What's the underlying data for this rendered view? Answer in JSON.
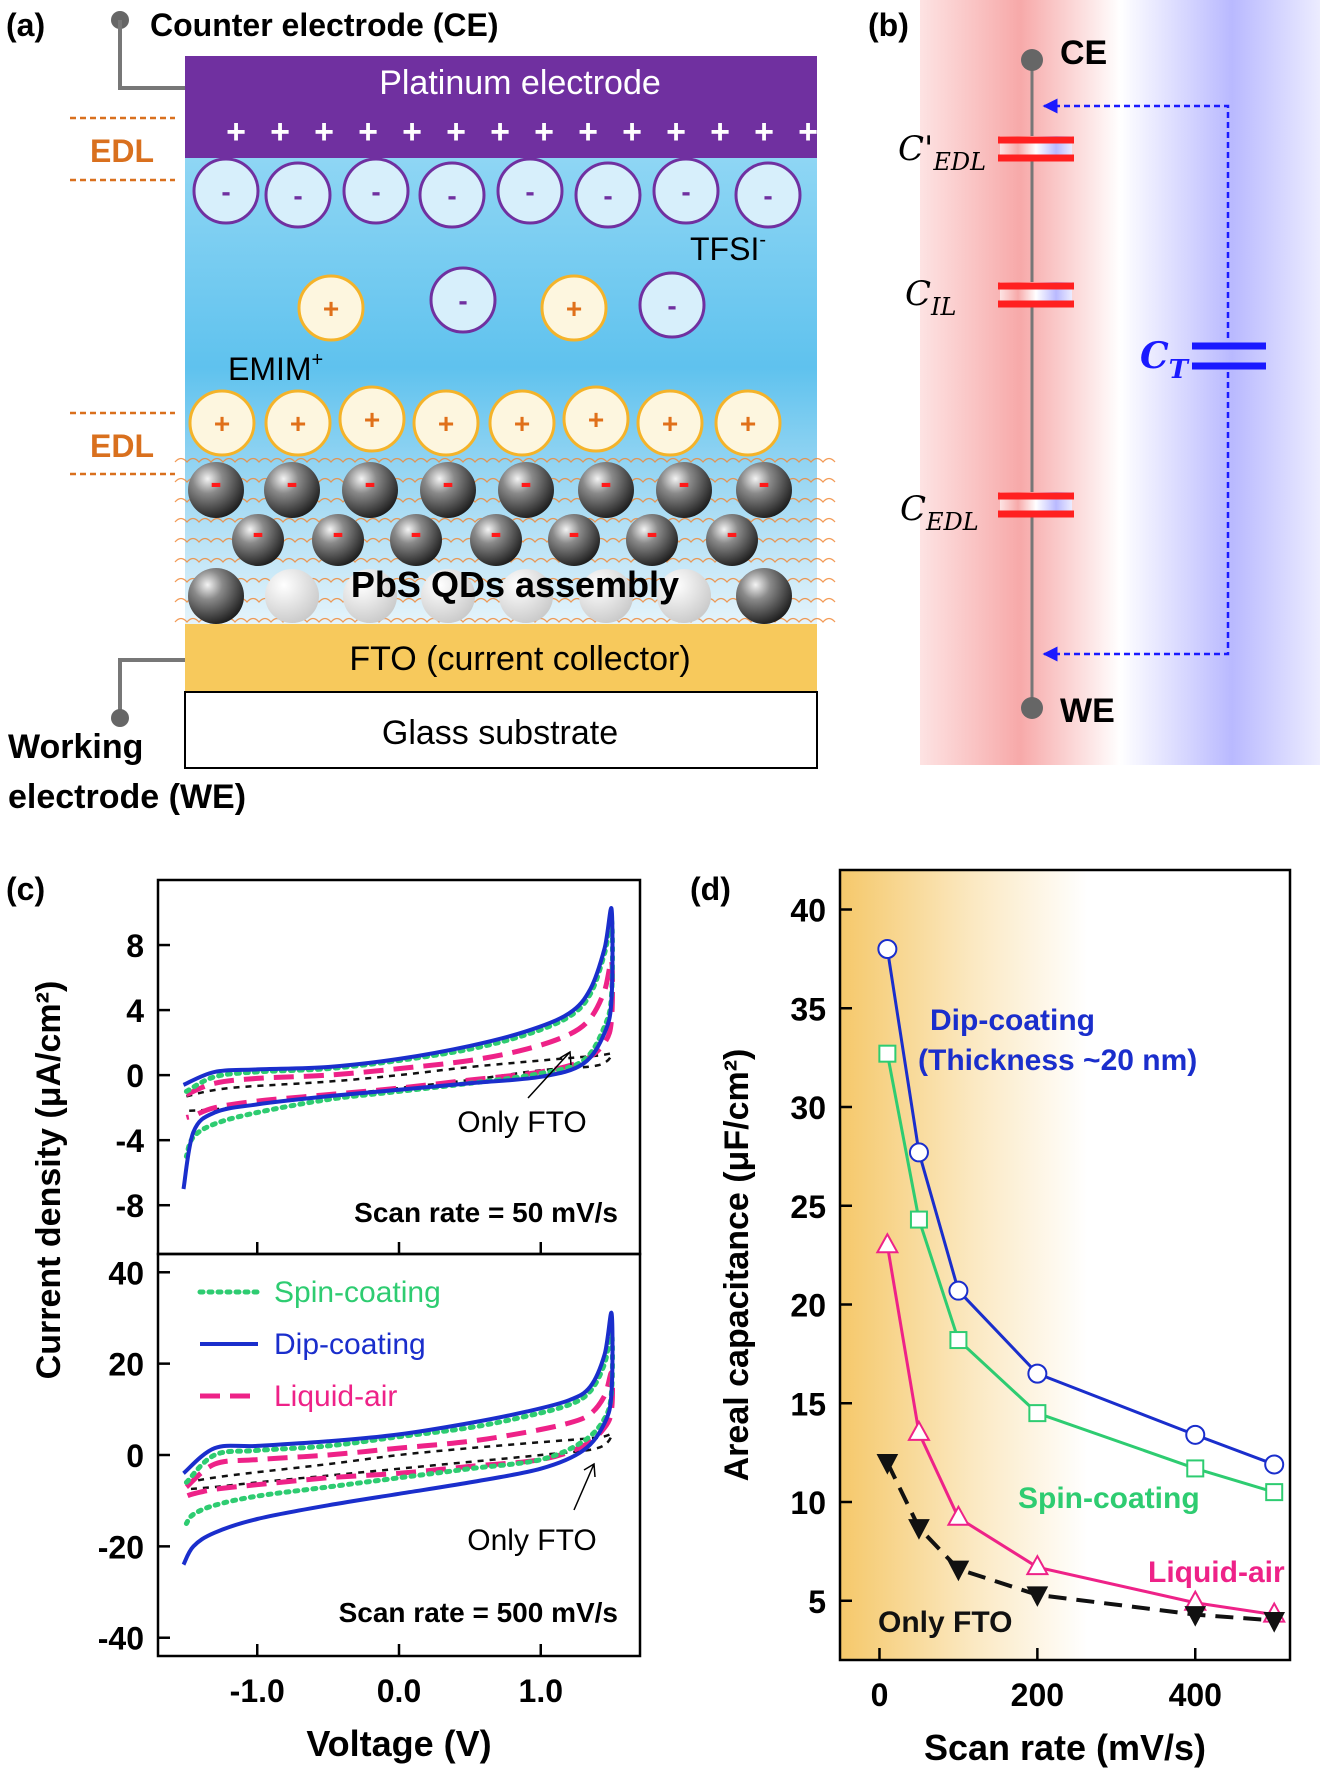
{
  "panel_labels": {
    "a": "(a)",
    "b": "(b)",
    "c": "(c)",
    "d": "(d)"
  },
  "schematic": {
    "counter_electrode": "Counter electrode (CE)",
    "working_electrode_line1": "Working",
    "working_electrode_line2": "electrode (WE)",
    "platinum": "Platinum electrode",
    "edl": "EDL",
    "tfsi": "TFSI",
    "tfsi_sup": "-",
    "emim": "EMIM",
    "emim_sup": "+",
    "pbs": "PbS QDs assembly",
    "fto": "FTO (current collector)",
    "glass": "Glass substrate",
    "plus_sign": "+",
    "minus_sign": "-",
    "colors": {
      "platinum": "#7030a0",
      "fto": "#f7c95c",
      "cation": "#f4b32a",
      "anion": "#7030a0",
      "edl": "#d9701e"
    }
  },
  "circuit": {
    "ce": "CE",
    "we": "WE",
    "c_edl_prime_main": "C'",
    "c_edl_prime_sub": "EDL",
    "c_il_main": "C",
    "c_il_sub": "IL",
    "c_edl_main": "C",
    "c_edl_sub": "EDL",
    "c_t_main": "C",
    "c_t_sub": "T",
    "colors": {
      "series_cap": "#ff2020",
      "parallel_cap": "#1a1aff"
    }
  },
  "chart_data": [
    {
      "id": "c_top",
      "type": "line",
      "annotation": "Scan rate = 50 mV/s",
      "arrow_label": "Only FTO",
      "ylim": [
        -11,
        12
      ],
      "xlim": [
        -1.7,
        1.7
      ],
      "yticks": [
        "8",
        "4",
        "0",
        "-4",
        "-8"
      ],
      "ytick_values": [
        8,
        4,
        0,
        -4,
        -8
      ],
      "series": [
        {
          "name": "Spin-coating",
          "color": "#2ecc71",
          "style": "dotted",
          "loop": [
            [
              -1.5,
              -1.0
            ],
            [
              -1.3,
              -0.1
            ],
            [
              -1.0,
              0.2
            ],
            [
              -0.5,
              0.4
            ],
            [
              0.0,
              0.9
            ],
            [
              0.5,
              1.6
            ],
            [
              0.9,
              2.5
            ],
            [
              1.2,
              3.6
            ],
            [
              1.35,
              5.0
            ],
            [
              1.45,
              7.5
            ],
            [
              1.5,
              9.5
            ],
            [
              1.5,
              5.0
            ],
            [
              1.45,
              3.0
            ],
            [
              1.3,
              0.9
            ],
            [
              1.0,
              0.1
            ],
            [
              0.5,
              -0.5
            ],
            [
              0.0,
              -1.0
            ],
            [
              -0.5,
              -1.5
            ],
            [
              -1.0,
              -2.3
            ],
            [
              -1.3,
              -3.0
            ],
            [
              -1.45,
              -3.8
            ],
            [
              -1.5,
              -5.0
            ]
          ]
        },
        {
          "name": "Dip-coating",
          "color": "#1a2ecc",
          "style": "solid",
          "loop": [
            [
              -1.52,
              -0.6
            ],
            [
              -1.3,
              0.2
            ],
            [
              -1.0,
              0.35
            ],
            [
              -0.5,
              0.5
            ],
            [
              0.0,
              1.0
            ],
            [
              0.5,
              1.8
            ],
            [
              0.9,
              2.7
            ],
            [
              1.2,
              3.8
            ],
            [
              1.35,
              5.3
            ],
            [
              1.45,
              7.8
            ],
            [
              1.5,
              10.2
            ],
            [
              1.5,
              4.8
            ],
            [
              1.45,
              2.6
            ],
            [
              1.3,
              0.7
            ],
            [
              1.0,
              -0.1
            ],
            [
              0.5,
              -0.5
            ],
            [
              0.0,
              -0.9
            ],
            [
              -0.5,
              -1.3
            ],
            [
              -1.0,
              -1.8
            ],
            [
              -1.3,
              -2.3
            ],
            [
              -1.45,
              -3.5
            ],
            [
              -1.52,
              -7.0
            ]
          ]
        },
        {
          "name": "Liquid-air",
          "color": "#ee2288",
          "style": "dashed",
          "loop": [
            [
              -1.5,
              -1.2
            ],
            [
              -1.3,
              -0.5
            ],
            [
              -1.0,
              -0.2
            ],
            [
              -0.5,
              0.0
            ],
            [
              0.0,
              0.4
            ],
            [
              0.5,
              0.9
            ],
            [
              0.9,
              1.6
            ],
            [
              1.2,
              2.5
            ],
            [
              1.35,
              3.5
            ],
            [
              1.45,
              5.2
            ],
            [
              1.5,
              7.0
            ],
            [
              1.5,
              3.5
            ],
            [
              1.45,
              2.0
            ],
            [
              1.3,
              0.9
            ],
            [
              1.0,
              0.2
            ],
            [
              0.5,
              -0.3
            ],
            [
              0.0,
              -0.8
            ],
            [
              -0.5,
              -1.2
            ],
            [
              -1.0,
              -1.6
            ],
            [
              -1.3,
              -2.0
            ],
            [
              -1.45,
              -2.5
            ],
            [
              -1.5,
              -2.6
            ]
          ]
        },
        {
          "name": "Only FTO",
          "color": "#111111",
          "style": "shortdash",
          "loop": [
            [
              -1.5,
              -1.3
            ],
            [
              -1.2,
              -0.8
            ],
            [
              -0.5,
              -0.4
            ],
            [
              0.0,
              0.0
            ],
            [
              0.5,
              0.5
            ],
            [
              1.0,
              0.9
            ],
            [
              1.4,
              1.2
            ],
            [
              1.5,
              1.3
            ],
            [
              1.4,
              0.6
            ],
            [
              1.0,
              0.3
            ],
            [
              0.5,
              -0.3
            ],
            [
              0.0,
              -0.8
            ],
            [
              -0.5,
              -1.3
            ],
            [
              -1.0,
              -1.8
            ],
            [
              -1.3,
              -2.1
            ],
            [
              -1.5,
              -2.2
            ]
          ]
        }
      ]
    },
    {
      "id": "c_bottom",
      "type": "line",
      "annotation": "Scan rate = 500 mV/s",
      "arrow_label": "Only FTO",
      "ylim": [
        -44,
        44
      ],
      "xlim": [
        -1.7,
        1.7
      ],
      "xticks": [
        "-1.0",
        "0.0",
        "1.0"
      ],
      "xtick_values": [
        -1.0,
        0.0,
        1.0
      ],
      "yticks": [
        "40",
        "20",
        "0",
        "-20",
        "-40"
      ],
      "ytick_values": [
        40,
        20,
        0,
        -20,
        -40
      ],
      "xlabel": "Voltage (V)",
      "legend": [
        "Spin-coating",
        "Dip-coating",
        "Liquid-air"
      ],
      "series": [
        {
          "name": "Spin-coating",
          "color": "#2ecc71",
          "style": "dotted",
          "loop": [
            [
              -1.5,
              -6
            ],
            [
              -1.3,
              0
            ],
            [
              -1.0,
              1
            ],
            [
              -0.5,
              2
            ],
            [
              0.0,
              4
            ],
            [
              0.5,
              6
            ],
            [
              0.9,
              8.5
            ],
            [
              1.2,
              11
            ],
            [
              1.35,
              14
            ],
            [
              1.45,
              20
            ],
            [
              1.5,
              27
            ],
            [
              1.5,
              14
            ],
            [
              1.45,
              8
            ],
            [
              1.3,
              3
            ],
            [
              1.0,
              -1
            ],
            [
              0.5,
              -3
            ],
            [
              0.0,
              -5
            ],
            [
              -0.5,
              -7
            ],
            [
              -1.0,
              -9
            ],
            [
              -1.3,
              -11
            ],
            [
              -1.45,
              -13
            ],
            [
              -1.5,
              -15
            ]
          ]
        },
        {
          "name": "Dip-coating",
          "color": "#1a2ecc",
          "style": "solid",
          "loop": [
            [
              -1.52,
              -4
            ],
            [
              -1.3,
              1.5
            ],
            [
              -1.0,
              2
            ],
            [
              -0.5,
              3
            ],
            [
              0.0,
              4.5
            ],
            [
              0.5,
              7
            ],
            [
              0.9,
              9.5
            ],
            [
              1.2,
              12
            ],
            [
              1.35,
              15
            ],
            [
              1.45,
              22
            ],
            [
              1.5,
              31
            ],
            [
              1.5,
              14
            ],
            [
              1.45,
              7
            ],
            [
              1.3,
              1
            ],
            [
              1.0,
              -3
            ],
            [
              0.5,
              -6
            ],
            [
              0.0,
              -8.5
            ],
            [
              -0.5,
              -11
            ],
            [
              -1.0,
              -14
            ],
            [
              -1.3,
              -17
            ],
            [
              -1.45,
              -20
            ],
            [
              -1.52,
              -24
            ]
          ]
        },
        {
          "name": "Liquid-air",
          "color": "#ee2288",
          "style": "dashed",
          "loop": [
            [
              -1.5,
              -7
            ],
            [
              -1.3,
              -2
            ],
            [
              -1.0,
              -1
            ],
            [
              -0.5,
              0
            ],
            [
              0.0,
              1.5
            ],
            [
              0.5,
              3
            ],
            [
              0.9,
              5
            ],
            [
              1.2,
              7
            ],
            [
              1.35,
              9
            ],
            [
              1.45,
              13
            ],
            [
              1.5,
              18
            ],
            [
              1.5,
              10
            ],
            [
              1.45,
              6
            ],
            [
              1.3,
              2
            ],
            [
              1.0,
              -1
            ],
            [
              0.5,
              -2.5
            ],
            [
              0.0,
              -4
            ],
            [
              -0.5,
              -5
            ],
            [
              -1.0,
              -6.5
            ],
            [
              -1.3,
              -7.5
            ],
            [
              -1.45,
              -8.5
            ],
            [
              -1.5,
              -9
            ]
          ]
        },
        {
          "name": "Only FTO",
          "color": "#111111",
          "style": "shortdash",
          "loop": [
            [
              -1.5,
              -6
            ],
            [
              -1.2,
              -4.5
            ],
            [
              -0.5,
              -2
            ],
            [
              0.0,
              0
            ],
            [
              0.5,
              1.5
            ],
            [
              1.0,
              2.8
            ],
            [
              1.4,
              3.8
            ],
            [
              1.5,
              4.5
            ],
            [
              1.4,
              1.5
            ],
            [
              1.0,
              0
            ],
            [
              0.5,
              -1.5
            ],
            [
              0.0,
              -3
            ],
            [
              -0.5,
              -4.5
            ],
            [
              -1.0,
              -6
            ],
            [
              -1.3,
              -7
            ],
            [
              -1.5,
              -7.5
            ]
          ]
        }
      ]
    },
    {
      "id": "d",
      "type": "line",
      "xlabel": "Scan rate (mV/s)",
      "ylabel": "Areal capacitance (μF/cm²)",
      "xlim": [
        -50,
        520
      ],
      "ylim": [
        2,
        42
      ],
      "xticks": [
        "0",
        "200",
        "400"
      ],
      "xtick_values": [
        0,
        200,
        400
      ],
      "yticks": [
        "40",
        "35",
        "30",
        "25",
        "20",
        "15",
        "10",
        "5"
      ],
      "ytick_values": [
        40,
        35,
        30,
        25,
        20,
        15,
        10,
        5
      ],
      "x": [
        10,
        50,
        100,
        200,
        400,
        500
      ],
      "series": [
        {
          "name": "Dip-coating",
          "label": "Dip-coating",
          "label2": "(Thickness ~20 nm)",
          "color": "#1a2ecc",
          "marker": "circle",
          "values": [
            38.0,
            27.7,
            20.7,
            16.5,
            13.4,
            11.9
          ]
        },
        {
          "name": "Spin-coating",
          "label": "Spin-coating",
          "color": "#2ecc71",
          "marker": "square",
          "values": [
            32.7,
            24.3,
            18.2,
            14.5,
            11.7,
            10.5
          ]
        },
        {
          "name": "Liquid-air",
          "label": "Liquid-air",
          "color": "#ee2288",
          "marker": "triangle",
          "values": [
            23.0,
            13.5,
            9.2,
            6.7,
            4.9,
            4.3
          ]
        },
        {
          "name": "Only FTO",
          "label": "Only FTO",
          "color": "#111111",
          "marker": "triangle-down",
          "values": [
            12.0,
            8.7,
            6.6,
            5.3,
            4.3,
            4.0
          ]
        }
      ]
    }
  ],
  "panel_c_ylabel": "Current density (μA/cm²)"
}
